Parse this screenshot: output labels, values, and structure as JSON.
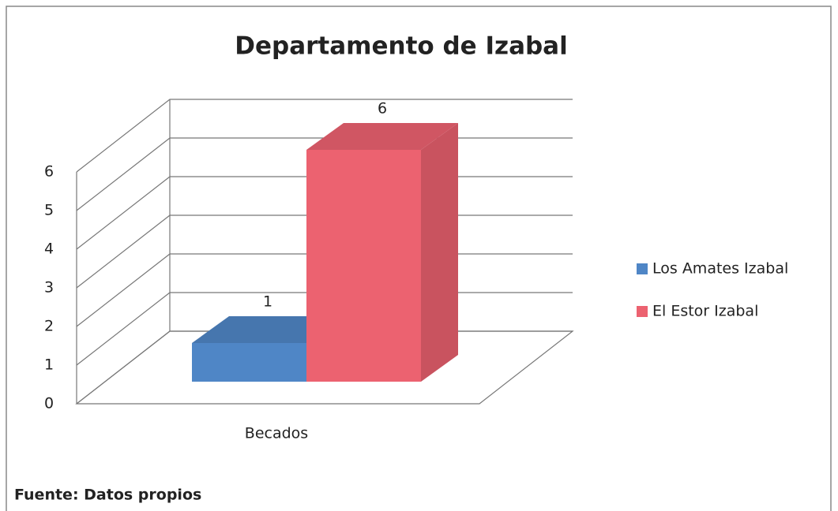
{
  "chart_data": {
    "type": "bar3d",
    "title": "Departamento de Izabal",
    "categories": [
      "Becados"
    ],
    "series": [
      {
        "name": "Los Amates Izabal",
        "color": "#4f86c6",
        "values": [
          1
        ]
      },
      {
        "name": "El Estor Izabal",
        "color": "#ec6270",
        "values": [
          6
        ]
      }
    ],
    "ylim": [
      0,
      6
    ],
    "yticks": [
      0,
      1,
      2,
      3,
      4,
      5,
      6
    ],
    "grid": true,
    "legend": "right",
    "source": "Fuente: Datos propios"
  }
}
